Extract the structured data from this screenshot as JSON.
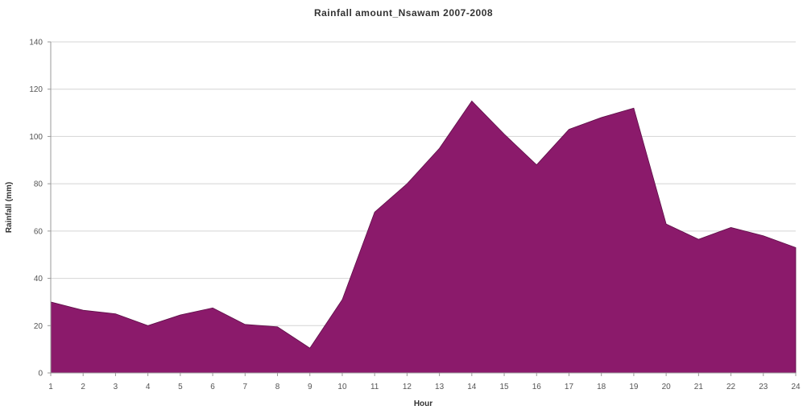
{
  "chart_data": {
    "type": "area",
    "title": "Rainfall amount_Nsawam 2007-2008",
    "xlabel": "Hour",
    "ylabel": "Rainfall (mm)",
    "ylim": [
      0,
      140
    ],
    "yticks": [
      "0",
      "20",
      "40",
      "60",
      "80",
      "100",
      "120",
      "140"
    ],
    "grid": true,
    "legend": "none",
    "categories": [
      "1",
      "2",
      "3",
      "4",
      "5",
      "6",
      "7",
      "8",
      "9",
      "10",
      "11",
      "12",
      "13",
      "14",
      "15",
      "16",
      "17",
      "18",
      "19",
      "20",
      "21",
      "22",
      "23",
      "24"
    ],
    "series": [
      {
        "color": "#8b1a6b",
        "values": [
          30,
          26.5,
          25,
          20,
          24.5,
          27.5,
          20.5,
          19.5,
          10.5,
          31,
          68,
          80,
          95,
          115,
          101,
          88,
          103,
          108,
          112,
          63,
          56.5,
          61.5,
          58,
          53
        ]
      }
    ]
  }
}
